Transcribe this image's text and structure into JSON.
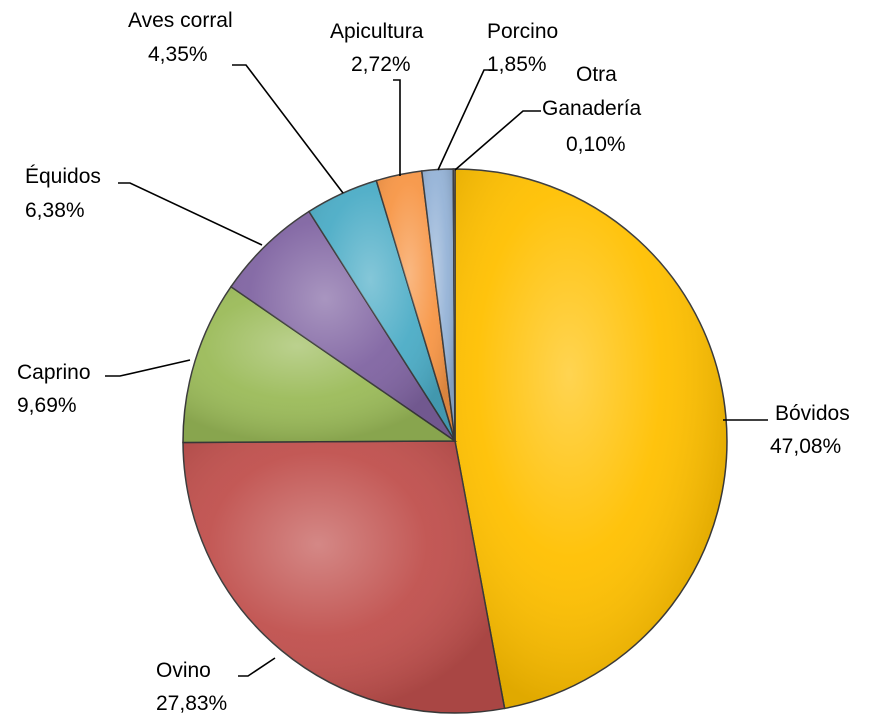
{
  "chart_data": {
    "type": "pie",
    "title": "",
    "slices": [
      {
        "label": "Bóvidos",
        "value": 47.08,
        "display": "47,08%",
        "color": "#FFC000"
      },
      {
        "label": "Ovino",
        "value": 27.83,
        "display": "27,83%",
        "color": "#C0504D"
      },
      {
        "label": "Caprino",
        "value": 9.69,
        "display": "9,69%",
        "color": "#9BBB59"
      },
      {
        "label": "Équidos",
        "value": 6.38,
        "display": "6,38%",
        "color": "#8064A2"
      },
      {
        "label": "Aves corral",
        "value": 4.35,
        "display": "4,35%",
        "color": "#4BACC6"
      },
      {
        "label": "Apicultura",
        "value": 2.72,
        "display": "2,72%",
        "color": "#F79646"
      },
      {
        "label": "Porcino",
        "value": 1.85,
        "display": "1,85%",
        "color": "#95B3D7"
      },
      {
        "label": "Otra Ganadería",
        "value": 0.1,
        "display": "0,10%",
        "color": "#E6B9B8"
      }
    ],
    "start_angle_deg": 0,
    "direction": "clockwise",
    "legend": "none",
    "data_labels": "outside with leader lines"
  }
}
